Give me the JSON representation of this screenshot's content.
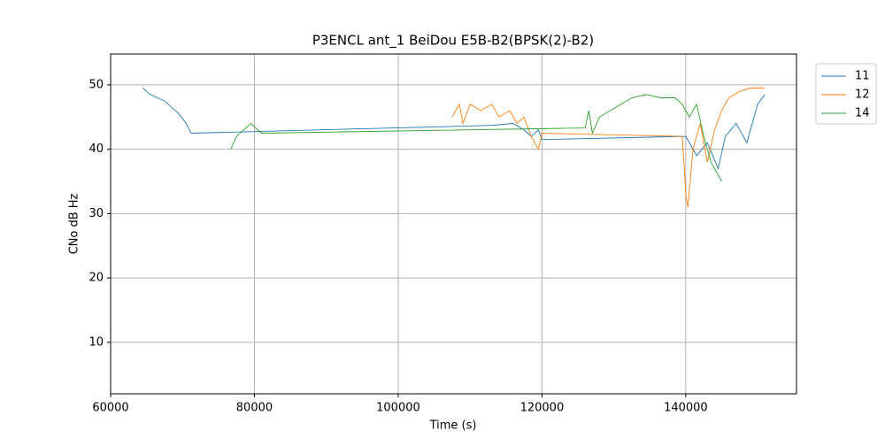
{
  "chart_data": {
    "type": "line",
    "title": "P3ENCL ant_1 BeiDou E5B-B2(BPSK(2)-B2)",
    "x_label": "Time (s)",
    "y_label": "CNo dB Hz",
    "xlim": [
      60000,
      155400
    ],
    "ylim": [
      2,
      54.8
    ],
    "xticks": [
      60000,
      80000,
      100000,
      120000,
      140000
    ],
    "yticks": [
      10,
      20,
      30,
      40,
      50
    ],
    "grid": true,
    "legend": "outside-right",
    "series": [
      {
        "name": "11",
        "color": "#1f77b4",
        "x": [
          64500,
          65500,
          66500,
          67500,
          68500,
          69500,
          70500,
          71200,
          113000,
          116000,
          117500,
          118500,
          119500,
          120000,
          140000,
          141500,
          143000,
          144500,
          145500,
          147000,
          148500,
          150000,
          151000
        ],
        "values": [
          49.5,
          48.5,
          48,
          47.5,
          46.5,
          45.5,
          44,
          42.5,
          43.7,
          44,
          43,
          42,
          43,
          41.5,
          42,
          39,
          41,
          37,
          42,
          44,
          41,
          47,
          48.5
        ]
      },
      {
        "name": "12",
        "color": "#ff7f0e",
        "x": [
          107500,
          108500,
          109000,
          110000,
          111500,
          113000,
          114000,
          115500,
          116500,
          117500,
          118500,
          119500,
          120000,
          139500,
          139800,
          140000,
          140300,
          141000,
          142000,
          143000,
          144000,
          145000,
          146000,
          147500,
          149000,
          151000
        ],
        "values": [
          45,
          47,
          44,
          47,
          46,
          47,
          45,
          46,
          44,
          45,
          42,
          40,
          42.5,
          42,
          37,
          33,
          31,
          40,
          44,
          38,
          43,
          46,
          48,
          49,
          49.5,
          49.5
        ]
      },
      {
        "name": "14",
        "color": "#2ca02c",
        "x": [
          76700,
          77500,
          78500,
          79500,
          80500,
          81000,
          126000,
          126500,
          127000,
          128000,
          129500,
          131000,
          132500,
          134500,
          136500,
          138500,
          139500,
          140500,
          141500,
          142500,
          143500,
          144500,
          145000
        ],
        "values": [
          40,
          42,
          43,
          44,
          43,
          42.5,
          43.3,
          46,
          42.5,
          45,
          46,
          47,
          48,
          48.5,
          48,
          48,
          47,
          45,
          47,
          42,
          38,
          36,
          35
        ]
      }
    ]
  }
}
